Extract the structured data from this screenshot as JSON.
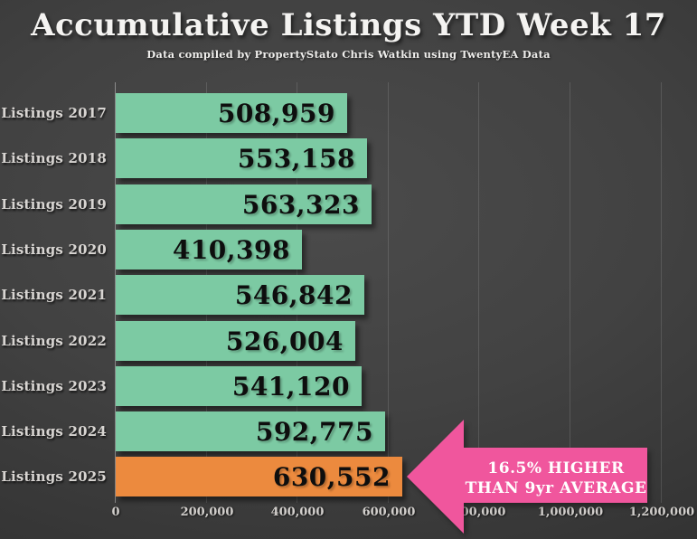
{
  "header": {
    "title": "Accumulative Listings YTD Week 17",
    "subtitle": "Data compiled by PropertyStato Chris Watkin using TwentyEA Data"
  },
  "chart_data": {
    "type": "bar",
    "orientation": "horizontal",
    "title": "Accumulative Listings YTD Week 17",
    "subtitle": "Data compiled by PropertyStato Chris Watkin using TwentyEA Data",
    "categories": [
      "Listings 2017",
      "Listings 2018",
      "Listings 2019",
      "Listings 2020",
      "Listings 2021",
      "Listings 2022",
      "Listings 2023",
      "Listings 2024",
      "Listings 2025"
    ],
    "values": [
      508959,
      553158,
      563323,
      410398,
      546842,
      526004,
      541120,
      592775,
      630552
    ],
    "value_labels": [
      "508,959",
      "553,158",
      "563,323",
      "410,398",
      "546,842",
      "526,004",
      "541,120",
      "592,775",
      "630,552"
    ],
    "bar_colors": [
      "#7ccaa3",
      "#7ccaa3",
      "#7ccaa3",
      "#7ccaa3",
      "#7ccaa3",
      "#7ccaa3",
      "#7ccaa3",
      "#7ccaa3",
      "#ec8a3e"
    ],
    "xlabel": "",
    "ylabel": "",
    "xlim": [
      0,
      1200000
    ],
    "x_ticks": [
      0,
      200000,
      400000,
      600000,
      800000,
      1000000,
      1200000
    ],
    "x_tick_labels": [
      "0",
      "200,000",
      "400,000",
      "600,000",
      "800,000",
      "1,000,000",
      "1,200,000"
    ],
    "grid": true,
    "legend": "none",
    "annotation": {
      "lines": [
        "16.5% HIGHER",
        "THAN 9yr AVERAGE"
      ],
      "color": "#f0569d",
      "text_color": "#ffffff",
      "shape": "left-pointing-arrow",
      "points_to": "Listings 2025"
    }
  },
  "colors": {
    "background_center": "#4b4b4b",
    "background_edge": "#2a2a2a",
    "bar_green": "#7ccaa3",
    "bar_orange": "#ec8a3e",
    "arrow_pink": "#f0569d",
    "title_text": "#f4f3f1",
    "axis_text": "#d2cfcc",
    "value_text": "#0e0e0e"
  }
}
